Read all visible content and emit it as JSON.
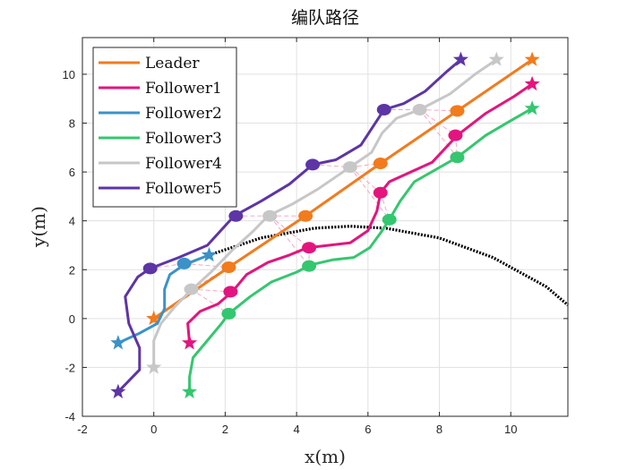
{
  "chart_data": {
    "type": "line",
    "title": "编队路径",
    "xlabel": "x(m)",
    "ylabel": "y(m)",
    "xlim": [
      -2,
      11.6
    ],
    "ylim": [
      -4,
      11.5
    ],
    "xticks": [
      -2,
      0,
      2,
      4,
      6,
      8,
      10
    ],
    "yticks": [
      -4,
      -2,
      0,
      2,
      4,
      6,
      8,
      10
    ],
    "grid": true,
    "legend_position": "top-left",
    "series": [
      {
        "name": "Leader",
        "color": "#F27B1D",
        "points": [
          [
            0,
            0
          ],
          [
            2.1,
            2.1
          ],
          [
            4.25,
            4.2
          ],
          [
            6.35,
            6.35
          ],
          [
            8.5,
            8.5
          ],
          [
            10.6,
            10.6
          ]
        ],
        "markers": [
          [
            2.1,
            2.1
          ],
          [
            4.25,
            4.2
          ],
          [
            6.35,
            6.35
          ],
          [
            8.5,
            8.5
          ]
        ],
        "start": [
          0,
          0
        ],
        "end": [
          10.6,
          10.6
        ]
      },
      {
        "name": "Follower1",
        "color": "#E4147E",
        "points": [
          [
            1,
            -1
          ],
          [
            0.95,
            -0.2
          ],
          [
            1.3,
            0.3
          ],
          [
            1.8,
            0.6
          ],
          [
            2.2,
            1.1
          ],
          [
            2.6,
            1.8
          ],
          [
            3.2,
            2.3
          ],
          [
            3.8,
            2.6
          ],
          [
            4.3,
            2.9
          ],
          [
            4.9,
            3.0
          ],
          [
            5.5,
            3.1
          ],
          [
            6.0,
            3.6
          ],
          [
            6.25,
            4.4
          ],
          [
            6.35,
            5.15
          ],
          [
            6.6,
            5.6
          ],
          [
            7.2,
            6.0
          ],
          [
            7.8,
            6.4
          ],
          [
            8.5,
            7.5
          ],
          [
            9.3,
            8.4
          ],
          [
            10.1,
            9.1
          ],
          [
            10.6,
            9.6
          ]
        ],
        "markers": [
          [
            2.15,
            1.1
          ],
          [
            4.35,
            2.9
          ],
          [
            6.35,
            5.15
          ],
          [
            8.45,
            7.5
          ]
        ],
        "start": [
          1,
          -1
        ],
        "end": [
          10.6,
          9.6
        ]
      },
      {
        "name": "Follower2",
        "color": "#3A92C9",
        "points": [
          [
            -1,
            -1
          ],
          [
            -0.4,
            -0.6
          ],
          [
            0.1,
            -0.2
          ],
          [
            0.3,
            0.4
          ],
          [
            0.3,
            1.2
          ],
          [
            0.45,
            1.8
          ],
          [
            0.85,
            2.2
          ],
          [
            1.2,
            2.4
          ],
          [
            1.55,
            2.6
          ]
        ],
        "markers": [
          [
            0.85,
            2.25
          ]
        ],
        "start": [
          -1,
          -1
        ],
        "end": [
          1.55,
          2.6
        ]
      },
      {
        "name": "Follower3",
        "color": "#34C76F",
        "points": [
          [
            1,
            -3
          ],
          [
            1.0,
            -2.4
          ],
          [
            1.1,
            -1.6
          ],
          [
            1.5,
            -0.9
          ],
          [
            1.9,
            -0.2
          ],
          [
            2.1,
            0.2
          ],
          [
            2.7,
            0.9
          ],
          [
            3.3,
            1.5
          ],
          [
            4.0,
            1.9
          ],
          [
            4.4,
            2.2
          ],
          [
            5.0,
            2.4
          ],
          [
            5.6,
            2.5
          ],
          [
            6.05,
            2.9
          ],
          [
            6.35,
            3.5
          ],
          [
            6.6,
            4.05
          ],
          [
            6.9,
            4.8
          ],
          [
            7.3,
            5.6
          ],
          [
            7.9,
            6.1
          ],
          [
            8.5,
            6.6
          ],
          [
            9.3,
            7.5
          ],
          [
            10.0,
            8.1
          ],
          [
            10.6,
            8.6
          ]
        ],
        "markers": [
          [
            2.1,
            0.2
          ],
          [
            4.35,
            2.15
          ],
          [
            6.6,
            4.05
          ],
          [
            8.5,
            6.6
          ]
        ],
        "start": [
          1,
          -3
        ],
        "end": [
          10.6,
          8.6
        ]
      },
      {
        "name": "Follower4",
        "color": "#C7C7C7",
        "points": [
          [
            0,
            -2
          ],
          [
            0.0,
            -0.9
          ],
          [
            0.2,
            -0.2
          ],
          [
            0.6,
            0.5
          ],
          [
            1.0,
            1.1
          ],
          [
            1.6,
            1.9
          ],
          [
            2.2,
            2.8
          ],
          [
            2.8,
            3.6
          ],
          [
            3.2,
            4.2
          ],
          [
            3.9,
            4.7
          ],
          [
            4.6,
            5.3
          ],
          [
            5.2,
            5.9
          ],
          [
            5.5,
            6.2
          ],
          [
            6.1,
            6.8
          ],
          [
            6.4,
            7.6
          ],
          [
            6.8,
            8.2
          ],
          [
            7.45,
            8.55
          ],
          [
            8.3,
            9.2
          ],
          [
            9.0,
            10.0
          ],
          [
            9.6,
            10.6
          ]
        ],
        "markers": [
          [
            1.05,
            1.2
          ],
          [
            3.25,
            4.2
          ],
          [
            5.5,
            6.2
          ],
          [
            7.45,
            8.55
          ]
        ],
        "start": [
          0,
          -2
        ],
        "end": [
          9.6,
          10.6
        ]
      },
      {
        "name": "Follower5",
        "color": "#5D35A5",
        "points": [
          [
            -1,
            -3
          ],
          [
            -0.4,
            -2.1
          ],
          [
            -0.4,
            -1.2
          ],
          [
            -0.7,
            -0.2
          ],
          [
            -0.8,
            0.9
          ],
          [
            -0.45,
            1.7
          ],
          [
            -0.1,
            2.05
          ],
          [
            0.7,
            2.5
          ],
          [
            1.5,
            3.0
          ],
          [
            2.25,
            4.2
          ],
          [
            3.0,
            4.8
          ],
          [
            3.8,
            5.5
          ],
          [
            4.45,
            6.3
          ],
          [
            5.1,
            6.5
          ],
          [
            5.8,
            7.1
          ],
          [
            6.45,
            8.55
          ],
          [
            7.0,
            8.8
          ],
          [
            7.6,
            9.3
          ],
          [
            8.2,
            10.1
          ],
          [
            8.6,
            10.6
          ]
        ],
        "markers": [
          [
            -0.1,
            2.05
          ],
          [
            2.3,
            4.2
          ],
          [
            4.45,
            6.3
          ],
          [
            6.45,
            8.55
          ]
        ],
        "start": [
          -1,
          -3
        ],
        "end": [
          8.6,
          10.6
        ]
      }
    ],
    "obstacle_curve": {
      "color": "#000000",
      "style": "dotted",
      "points": [
        [
          1.55,
          2.6
        ],
        [
          3.0,
          3.3
        ],
        [
          4.5,
          3.7
        ],
        [
          5.5,
          3.78
        ],
        [
          6.5,
          3.7
        ],
        [
          8.0,
          3.3
        ],
        [
          9.5,
          2.5
        ],
        [
          11.0,
          1.3
        ],
        [
          11.6,
          0.55
        ]
      ]
    },
    "formation_links": {
      "color": "#F5A0B6",
      "style": "dashed",
      "segments": [
        [
          [
            -0.1,
            2.05
          ],
          [
            0.85,
            2.25
          ]
        ],
        [
          [
            0.85,
            2.25
          ],
          [
            2.1,
            2.1
          ]
        ],
        [
          [
            1.05,
            1.2
          ],
          [
            2.15,
            1.1
          ]
        ],
        [
          [
            1.05,
            1.2
          ],
          [
            2.1,
            0.2
          ]
        ],
        [
          [
            1.05,
            1.2
          ],
          [
            2.1,
            2.1
          ]
        ],
        [
          [
            2.3,
            4.2
          ],
          [
            3.25,
            4.2
          ]
        ],
        [
          [
            3.25,
            4.2
          ],
          [
            4.25,
            4.2
          ]
        ],
        [
          [
            3.25,
            4.2
          ],
          [
            4.35,
            2.9
          ]
        ],
        [
          [
            4.35,
            2.9
          ],
          [
            4.35,
            2.15
          ]
        ],
        [
          [
            3.25,
            4.2
          ],
          [
            4.35,
            2.15
          ]
        ],
        [
          [
            4.45,
            6.3
          ],
          [
            5.5,
            6.2
          ]
        ],
        [
          [
            5.5,
            6.2
          ],
          [
            6.35,
            6.35
          ]
        ],
        [
          [
            5.5,
            6.2
          ],
          [
            6.35,
            5.15
          ]
        ],
        [
          [
            6.35,
            5.15
          ],
          [
            6.6,
            4.05
          ]
        ],
        [
          [
            5.5,
            6.2
          ],
          [
            6.6,
            4.05
          ]
        ],
        [
          [
            6.45,
            8.55
          ],
          [
            7.45,
            8.55
          ]
        ],
        [
          [
            7.45,
            8.55
          ],
          [
            8.5,
            8.5
          ]
        ],
        [
          [
            7.45,
            8.55
          ],
          [
            8.45,
            7.5
          ]
        ],
        [
          [
            8.45,
            7.5
          ],
          [
            8.5,
            6.6
          ]
        ],
        [
          [
            7.45,
            8.55
          ],
          [
            8.5,
            6.6
          ]
        ]
      ]
    }
  }
}
